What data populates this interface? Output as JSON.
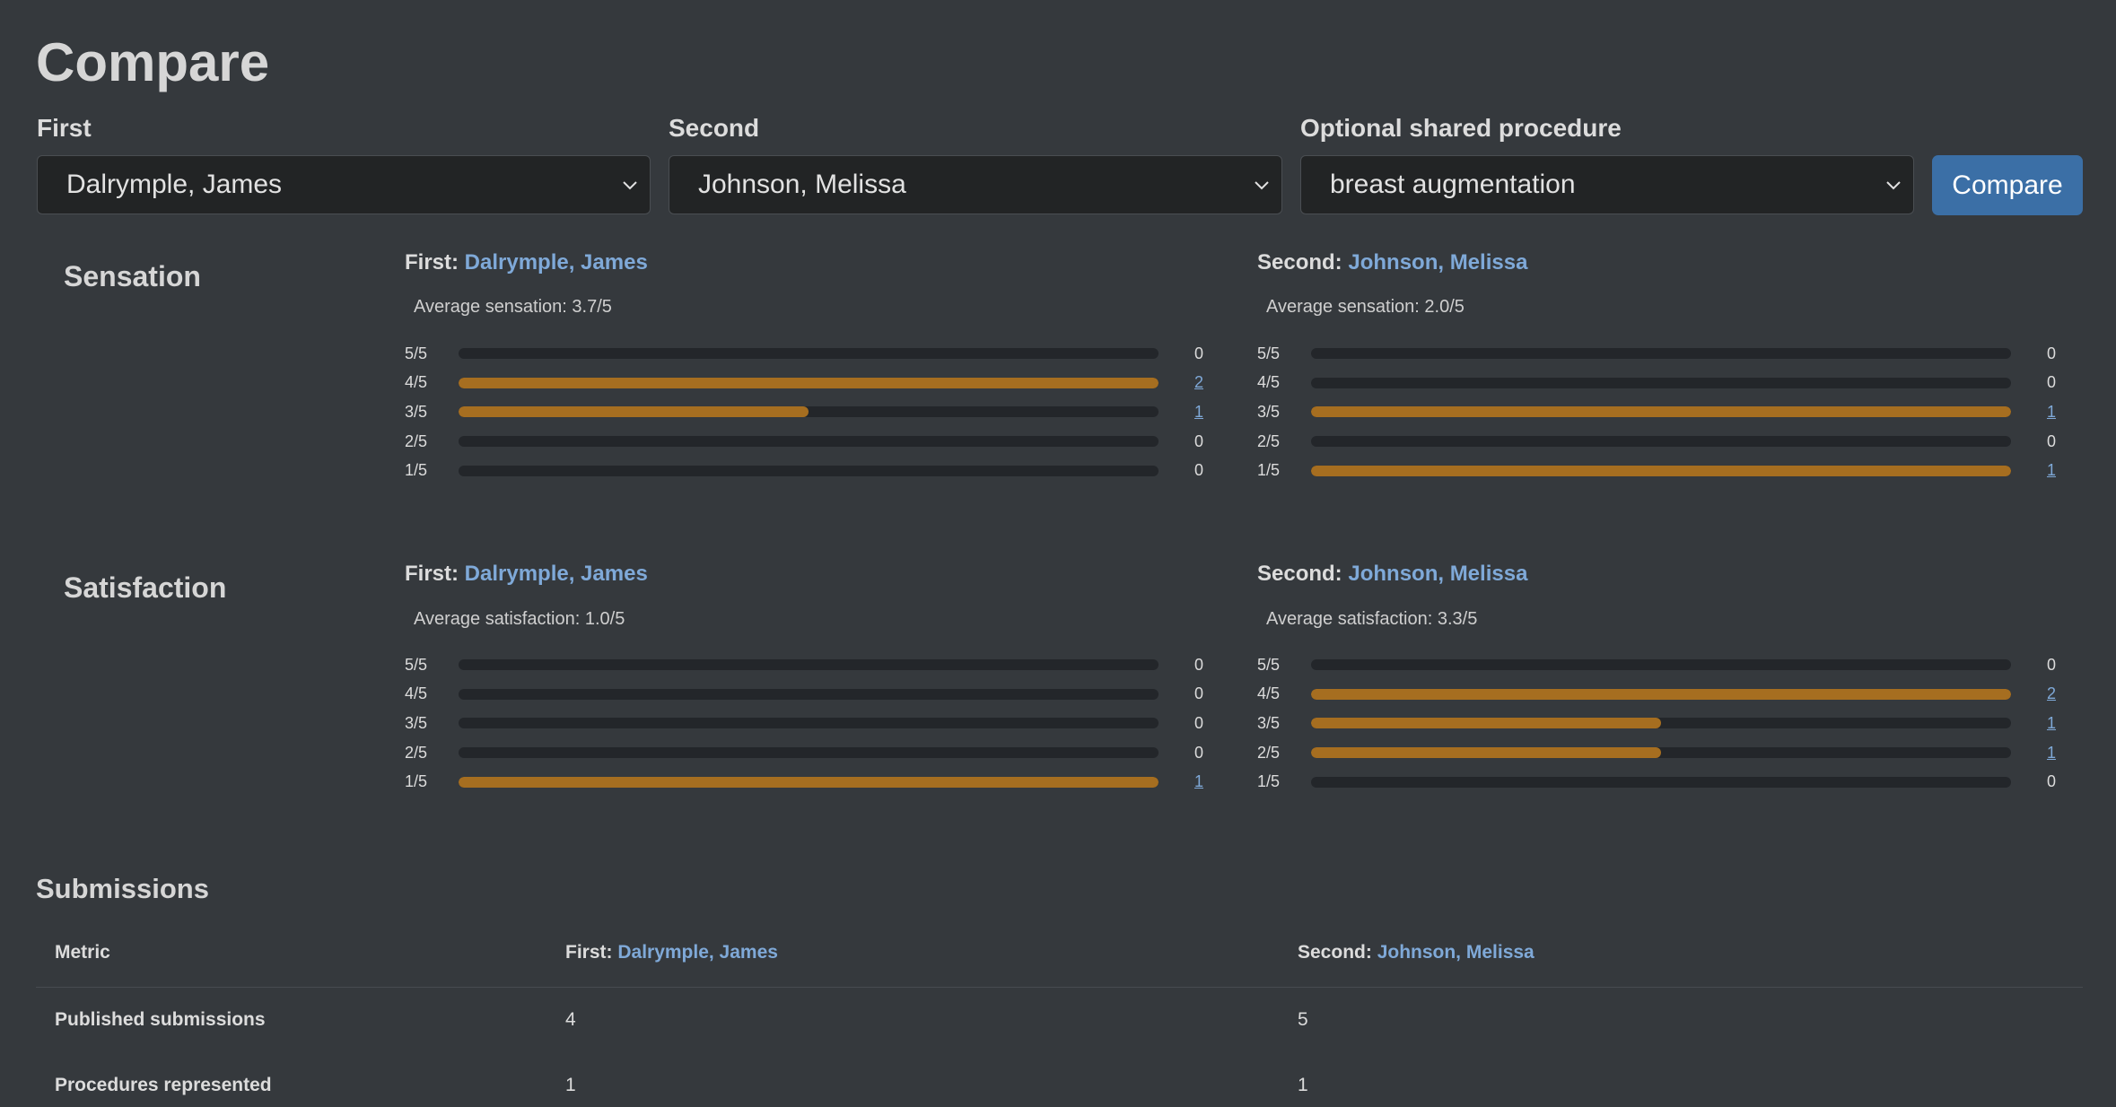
{
  "page": {
    "title": "Compare"
  },
  "form": {
    "first_label": "First",
    "second_label": "Second",
    "procedure_label": "Optional shared procedure",
    "first_value": "Dalrymple, James",
    "second_value": "Johnson, Melissa",
    "procedure_value": "breast augmentation",
    "compare_button": "Compare"
  },
  "sensation": {
    "title": "Sensation",
    "first": {
      "prefix": "First:",
      "name": "Dalrymple, James",
      "average": "Average sensation: 3.7/5",
      "rows": [
        {
          "label": "5/5",
          "count": "0",
          "fraction": 0
        },
        {
          "label": "4/5",
          "count": "2",
          "fraction": 1.0
        },
        {
          "label": "3/5",
          "count": "1",
          "fraction": 0.5
        },
        {
          "label": "2/5",
          "count": "0",
          "fraction": 0
        },
        {
          "label": "1/5",
          "count": "0",
          "fraction": 0
        }
      ]
    },
    "second": {
      "prefix": "Second:",
      "name": "Johnson, Melissa",
      "average": "Average sensation: 2.0/5",
      "rows": [
        {
          "label": "5/5",
          "count": "0",
          "fraction": 0
        },
        {
          "label": "4/5",
          "count": "0",
          "fraction": 0
        },
        {
          "label": "3/5",
          "count": "1",
          "fraction": 1.0
        },
        {
          "label": "2/5",
          "count": "0",
          "fraction": 0
        },
        {
          "label": "1/5",
          "count": "1",
          "fraction": 1.0
        }
      ]
    }
  },
  "satisfaction": {
    "title": "Satisfaction",
    "first": {
      "prefix": "First:",
      "name": "Dalrymple, James",
      "average": "Average satisfaction: 1.0/5",
      "rows": [
        {
          "label": "5/5",
          "count": "0",
          "fraction": 0
        },
        {
          "label": "4/5",
          "count": "0",
          "fraction": 0
        },
        {
          "label": "3/5",
          "count": "0",
          "fraction": 0
        },
        {
          "label": "2/5",
          "count": "0",
          "fraction": 0
        },
        {
          "label": "1/5",
          "count": "1",
          "fraction": 1.0
        }
      ]
    },
    "second": {
      "prefix": "Second:",
      "name": "Johnson, Melissa",
      "average": "Average satisfaction: 3.3/5",
      "rows": [
        {
          "label": "5/5",
          "count": "0",
          "fraction": 0
        },
        {
          "label": "4/5",
          "count": "2",
          "fraction": 1.0
        },
        {
          "label": "3/5",
          "count": "1",
          "fraction": 0.5
        },
        {
          "label": "2/5",
          "count": "1",
          "fraction": 0.5
        },
        {
          "label": "1/5",
          "count": "0",
          "fraction": 0
        }
      ]
    }
  },
  "submissions": {
    "title": "Submissions",
    "headers": {
      "metric": "Metric",
      "first_prefix": "First:",
      "first_name": "Dalrymple, James",
      "second_prefix": "Second:",
      "second_name": "Johnson, Melissa"
    },
    "rows": [
      {
        "metric": "Published submissions",
        "first": "4",
        "second": "5"
      },
      {
        "metric": "Procedures represented",
        "first": "1",
        "second": "1"
      }
    ]
  },
  "colors": {
    "background": "#35393d",
    "bar_fill": "#a66e20",
    "bar_track": "#23262a",
    "link": "#7fa9d8",
    "button": "#3b6fa6"
  }
}
